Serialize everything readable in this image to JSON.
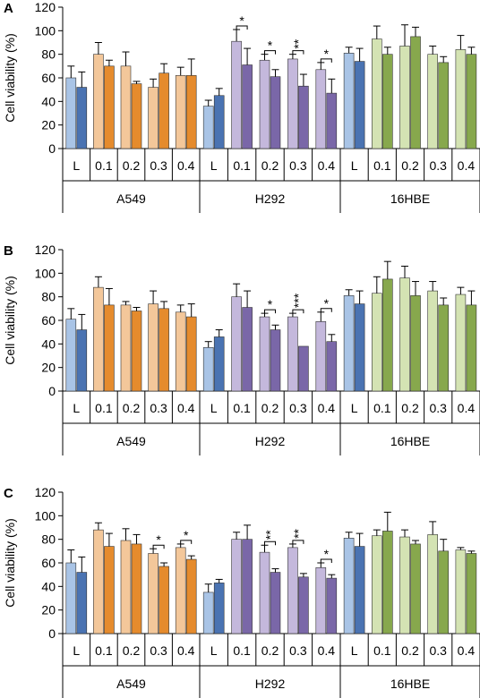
{
  "chart_data": [
    {
      "type": "bar",
      "panel": "A",
      "ylabel": "Cell viability (%)",
      "ylim": [
        0,
        120
      ],
      "yticks": [
        "0",
        "20",
        "40",
        "60",
        "80",
        "100",
        "120"
      ],
      "groups": [
        {
          "label": "A549",
          "categories": [
            "L",
            "0.1",
            "0.2",
            "0.3",
            "0.4"
          ],
          "colors": [
            [
              "#a9c4e6",
              "#4a73b2"
            ],
            [
              "#f3c79a",
              "#e58b2d"
            ],
            [
              "#f3c79a",
              "#e58b2d"
            ],
            [
              "#f3c79a",
              "#e58b2d"
            ],
            [
              "#f3c79a",
              "#e58b2d"
            ]
          ],
          "bars": [
            [
              60,
              52
            ],
            [
              80,
              70
            ],
            [
              70,
              55
            ],
            [
              52,
              64
            ],
            [
              62,
              62
            ]
          ],
          "errors": [
            [
              10,
              13
            ],
            [
              10,
              5
            ],
            [
              12,
              2
            ],
            [
              7,
              8
            ],
            [
              7,
              14
            ]
          ],
          "stars": [
            "",
            "",
            "",
            "",
            ""
          ]
        },
        {
          "label": "H292",
          "categories": [
            "L",
            "0.1",
            "0.2",
            "0.3",
            "0.4"
          ],
          "colors": [
            [
              "#a9c4e6",
              "#4a73b2"
            ],
            [
              "#c4b8dc",
              "#7a67a8"
            ],
            [
              "#c4b8dc",
              "#7a67a8"
            ],
            [
              "#c4b8dc",
              "#7a67a8"
            ],
            [
              "#c4b8dc",
              "#7a67a8"
            ]
          ],
          "bars": [
            [
              36,
              45
            ],
            [
              91,
              71
            ],
            [
              75,
              61
            ],
            [
              76,
              53
            ],
            [
              67,
              47
            ]
          ],
          "errors": [
            [
              5,
              6
            ],
            [
              10,
              14
            ],
            [
              5,
              6
            ],
            [
              4,
              10
            ],
            [
              6,
              12
            ]
          ],
          "stars": [
            "",
            "*",
            "*",
            "**",
            "*"
          ]
        },
        {
          "label": "16HBE",
          "categories": [
            "L",
            "0.1",
            "0.2",
            "0.3",
            "0.4"
          ],
          "colors": [
            [
              "#a9c4e6",
              "#4a73b2"
            ],
            [
              "#d4e3b3",
              "#87a84d"
            ],
            [
              "#d4e3b3",
              "#87a84d"
            ],
            [
              "#d4e3b3",
              "#87a84d"
            ],
            [
              "#d4e3b3",
              "#87a84d"
            ]
          ],
          "bars": [
            [
              81,
              74
            ],
            [
              93,
              80
            ],
            [
              87,
              95
            ],
            [
              80,
              73
            ],
            [
              84,
              80
            ]
          ],
          "errors": [
            [
              5,
              11
            ],
            [
              11,
              6
            ],
            [
              18,
              8
            ],
            [
              7,
              5
            ],
            [
              12,
              6
            ]
          ],
          "stars": [
            "",
            "",
            "",
            "",
            ""
          ]
        }
      ]
    },
    {
      "type": "bar",
      "panel": "B",
      "ylabel": "Cell viability (%)",
      "ylim": [
        0,
        120
      ],
      "yticks": [
        "0",
        "20",
        "40",
        "60",
        "80",
        "100",
        "120"
      ],
      "groups": [
        {
          "label": "A549",
          "categories": [
            "L",
            "0.1",
            "0.2",
            "0.3",
            "0.4"
          ],
          "colors": [
            [
              "#a9c4e6",
              "#4a73b2"
            ],
            [
              "#f3c79a",
              "#e58b2d"
            ],
            [
              "#f3c79a",
              "#e58b2d"
            ],
            [
              "#f3c79a",
              "#e58b2d"
            ],
            [
              "#f3c79a",
              "#e58b2d"
            ]
          ],
          "bars": [
            [
              61,
              52
            ],
            [
              88,
              73
            ],
            [
              73,
              68
            ],
            [
              74,
              70
            ],
            [
              67,
              63
            ]
          ],
          "errors": [
            [
              9,
              13
            ],
            [
              9,
              14
            ],
            [
              3,
              3
            ],
            [
              11,
              6
            ],
            [
              6,
              11
            ]
          ],
          "stars": [
            "",
            "",
            "",
            "",
            ""
          ]
        },
        {
          "label": "H292",
          "categories": [
            "L",
            "0.1",
            "0.2",
            "0.3",
            "0.4"
          ],
          "colors": [
            [
              "#a9c4e6",
              "#4a73b2"
            ],
            [
              "#c4b8dc",
              "#7a67a8"
            ],
            [
              "#c4b8dc",
              "#7a67a8"
            ],
            [
              "#c4b8dc",
              "#7a67a8"
            ],
            [
              "#c4b8dc",
              "#7a67a8"
            ]
          ],
          "bars": [
            [
              37,
              46
            ],
            [
              80,
              71
            ],
            [
              63,
              52
            ],
            [
              63,
              38
            ],
            [
              59,
              42
            ]
          ],
          "errors": [
            [
              5,
              6
            ],
            [
              11,
              14
            ],
            [
              3,
              4
            ],
            [
              3,
              0
            ],
            [
              8,
              6
            ]
          ],
          "stars": [
            "",
            "",
            "*",
            "***",
            "*"
          ]
        },
        {
          "label": "16HBE",
          "categories": [
            "L",
            "0.1",
            "0.2",
            "0.3",
            "0.4"
          ],
          "colors": [
            [
              "#a9c4e6",
              "#4a73b2"
            ],
            [
              "#d4e3b3",
              "#87a84d"
            ],
            [
              "#d4e3b3",
              "#87a84d"
            ],
            [
              "#d4e3b3",
              "#87a84d"
            ],
            [
              "#d4e3b3",
              "#87a84d"
            ]
          ],
          "bars": [
            [
              81,
              74
            ],
            [
              83,
              95
            ],
            [
              96,
              81
            ],
            [
              85,
              73
            ],
            [
              82,
              73
            ]
          ],
          "errors": [
            [
              5,
              11
            ],
            [
              14,
              15
            ],
            [
              10,
              12
            ],
            [
              8,
              6
            ],
            [
              6,
              12
            ]
          ],
          "stars": [
            "",
            "",
            "",
            "",
            ""
          ]
        }
      ]
    },
    {
      "type": "bar",
      "panel": "C",
      "ylabel": "Cell viability (%)",
      "ylim": [
        0,
        120
      ],
      "yticks": [
        "0",
        "20",
        "40",
        "60",
        "80",
        "100",
        "120"
      ],
      "groups": [
        {
          "label": "A549",
          "categories": [
            "L",
            "0.1",
            "0.2",
            "0.3",
            "0.4"
          ],
          "colors": [
            [
              "#a9c4e6",
              "#4a73b2"
            ],
            [
              "#f3c79a",
              "#e58b2d"
            ],
            [
              "#f3c79a",
              "#e58b2d"
            ],
            [
              "#f3c79a",
              "#e58b2d"
            ],
            [
              "#f3c79a",
              "#e58b2d"
            ]
          ],
          "bars": [
            [
              60,
              52
            ],
            [
              88,
              74
            ],
            [
              79,
              76
            ],
            [
              68,
              57
            ],
            [
              73,
              63
            ]
          ],
          "errors": [
            [
              11,
              13
            ],
            [
              6,
              11
            ],
            [
              10,
              8
            ],
            [
              4,
              3
            ],
            [
              3,
              3
            ]
          ],
          "stars": [
            "",
            "",
            "",
            "*",
            "*"
          ]
        },
        {
          "label": "H292",
          "categories": [
            "L",
            "0.1",
            "0.2",
            "0.3",
            "0.4"
          ],
          "colors": [
            [
              "#a9c4e6",
              "#4a73b2"
            ],
            [
              "#c4b8dc",
              "#7a67a8"
            ],
            [
              "#c4b8dc",
              "#7a67a8"
            ],
            [
              "#c4b8dc",
              "#7a67a8"
            ],
            [
              "#c4b8dc",
              "#7a67a8"
            ]
          ],
          "bars": [
            [
              35,
              43
            ],
            [
              80,
              80
            ],
            [
              69,
              52
            ],
            [
              73,
              48
            ],
            [
              56,
              47
            ]
          ],
          "errors": [
            [
              7,
              3
            ],
            [
              6,
              12
            ],
            [
              6,
              3
            ],
            [
              3,
              3
            ],
            [
              4,
              3
            ]
          ],
          "stars": [
            "",
            "",
            "**",
            "**",
            "*"
          ]
        },
        {
          "label": "16HBE",
          "categories": [
            "L",
            "0.1",
            "0.2",
            "0.3",
            "0.4"
          ],
          "colors": [
            [
              "#a9c4e6",
              "#4a73b2"
            ],
            [
              "#d4e3b3",
              "#87a84d"
            ],
            [
              "#d4e3b3",
              "#87a84d"
            ],
            [
              "#d4e3b3",
              "#87a84d"
            ],
            [
              "#d4e3b3",
              "#87a84d"
            ]
          ],
          "bars": [
            [
              81,
              74
            ],
            [
              83,
              87
            ],
            [
              82,
              76
            ],
            [
              84,
              70
            ],
            [
              71,
              68
            ]
          ],
          "errors": [
            [
              5,
              11
            ],
            [
              5,
              16
            ],
            [
              6,
              3
            ],
            [
              11,
              10
            ],
            [
              2,
              2
            ]
          ],
          "stars": [
            "",
            "",
            "",
            "",
            ""
          ]
        }
      ]
    }
  ]
}
